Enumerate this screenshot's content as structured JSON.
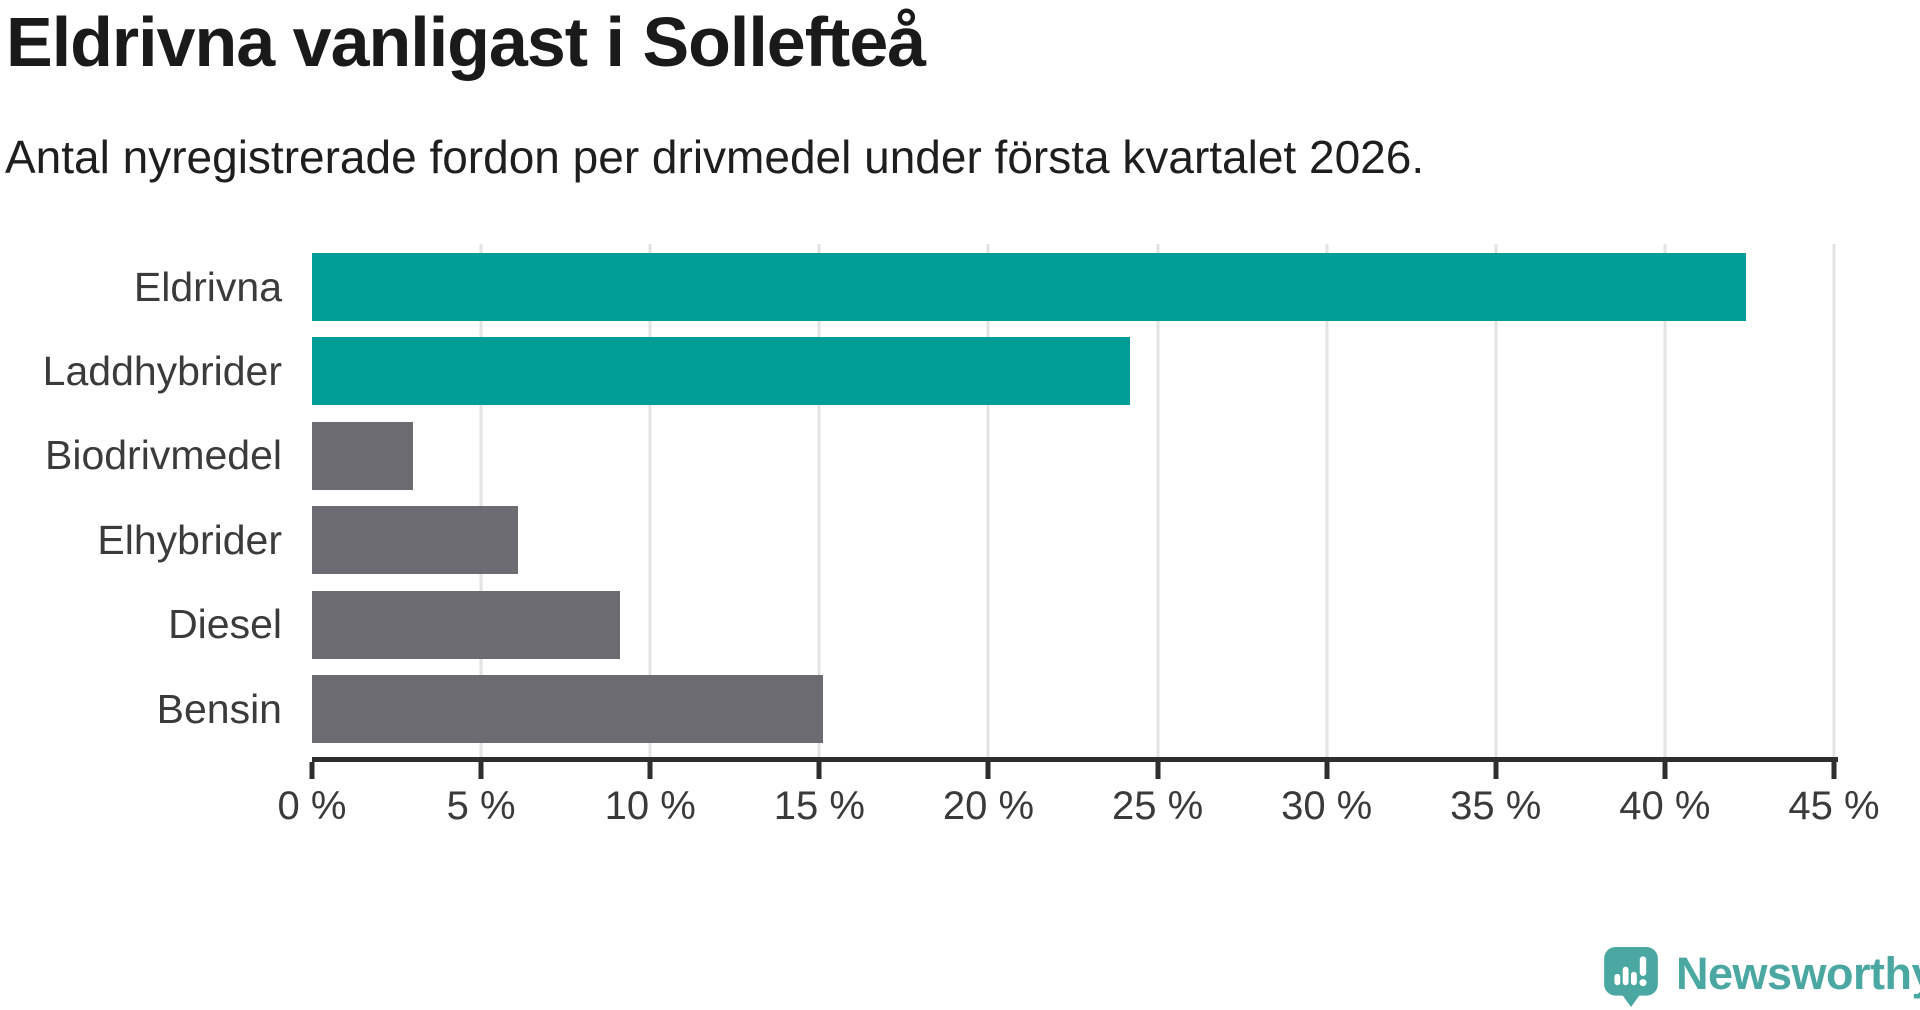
{
  "header": {
    "title": "Eldrivna vanligast i Sollefteå",
    "subtitle": "Antal nyregistrerade fordon per drivmedel under första kvartalet 2026."
  },
  "chart_data": {
    "type": "bar",
    "orientation": "horizontal",
    "title": "Eldrivna vanligast i Sollefteå",
    "subtitle": "Antal nyregistrerade fordon per drivmedel under första kvartalet 2026.",
    "categories": [
      "Eldrivna",
      "Laddhybrider",
      "Biodrivmedel",
      "Elhybrider",
      "Diesel",
      "Bensin"
    ],
    "values": [
      42.4,
      24.2,
      3.0,
      6.1,
      9.1,
      15.1
    ],
    "unit": "%",
    "highlighted": [
      true,
      true,
      false,
      false,
      false,
      false
    ],
    "highlight_color": "#009e96",
    "default_color": "#6c6b72",
    "xlim": [
      0,
      45
    ],
    "x_tick_step": 5,
    "x_tick_labels": [
      "0 %",
      "5 %",
      "10 %",
      "15 %",
      "20 %",
      "25 %",
      "30 %",
      "35 %",
      "40 %",
      "45 %"
    ],
    "grid": "vertical",
    "gridline_color": "#e3e3e3",
    "axis_color": "#2e2e2e",
    "label_color": "#3b3b3b",
    "legend": "none"
  },
  "footer": {
    "brand": "Newsworthy",
    "brand_color": "#4ba7a2"
  }
}
